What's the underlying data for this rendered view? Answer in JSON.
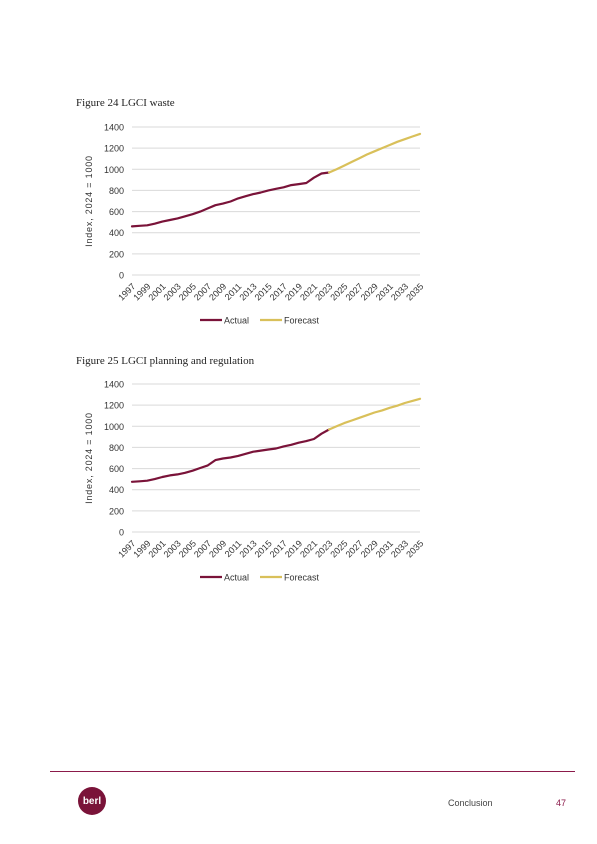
{
  "figures": [
    {
      "title": "Figure 24 LGCI waste"
    },
    {
      "title": "Figure 25 LGCI planning and regulation"
    }
  ],
  "chart_data": [
    {
      "type": "line",
      "ylabel": "Index, 2024 = 1000",
      "xlabel": "",
      "ylim": [
        0,
        1400
      ],
      "yticks": [
        0,
        200,
        400,
        600,
        800,
        1000,
        1200,
        1400
      ],
      "xticks": [
        "1997",
        "1999",
        "2001",
        "2003",
        "2005",
        "2007",
        "2009",
        "2011",
        "2013",
        "2015",
        "2017",
        "2019",
        "2021",
        "2023",
        "2025",
        "2027",
        "2029",
        "2031",
        "2033",
        "2035"
      ],
      "grid": true,
      "legend_position": "bottom",
      "series": [
        {
          "name": "Actual",
          "color": "#7a1339",
          "x": [
            1997,
            1998,
            1999,
            2000,
            2001,
            2002,
            2003,
            2004,
            2005,
            2006,
            2007,
            2008,
            2009,
            2010,
            2011,
            2012,
            2013,
            2014,
            2015,
            2016,
            2017,
            2018,
            2019,
            2020,
            2021,
            2022,
            2023
          ],
          "y": [
            460,
            465,
            470,
            485,
            505,
            520,
            535,
            555,
            575,
            600,
            630,
            660,
            675,
            695,
            725,
            745,
            765,
            780,
            800,
            815,
            830,
            850,
            860,
            870,
            920,
            960,
            970
          ]
        },
        {
          "name": "Forecast",
          "color": "#d9c05a",
          "x": [
            2023,
            2024,
            2025,
            2026,
            2027,
            2028,
            2029,
            2030,
            2031,
            2032,
            2033,
            2034,
            2035
          ],
          "y": [
            970,
            1000,
            1035,
            1070,
            1105,
            1140,
            1170,
            1200,
            1230,
            1260,
            1285,
            1310,
            1335
          ]
        }
      ]
    },
    {
      "type": "line",
      "ylabel": "Index, 2024 = 1000",
      "xlabel": "",
      "ylim": [
        0,
        1400
      ],
      "yticks": [
        0,
        200,
        400,
        600,
        800,
        1000,
        1200,
        1400
      ],
      "xticks": [
        "1997",
        "1999",
        "2001",
        "2003",
        "2005",
        "2007",
        "2009",
        "2011",
        "2013",
        "2015",
        "2017",
        "2019",
        "2021",
        "2023",
        "2025",
        "2027",
        "2029",
        "2031",
        "2033",
        "2035"
      ],
      "grid": true,
      "legend_position": "bottom",
      "series": [
        {
          "name": "Actual",
          "color": "#7a1339",
          "x": [
            1997,
            1998,
            1999,
            2000,
            2001,
            2002,
            2003,
            2004,
            2005,
            2006,
            2007,
            2008,
            2009,
            2010,
            2011,
            2012,
            2013,
            2014,
            2015,
            2016,
            2017,
            2018,
            2019,
            2020,
            2021,
            2022,
            2023
          ],
          "y": [
            475,
            480,
            485,
            500,
            520,
            535,
            545,
            560,
            580,
            605,
            630,
            680,
            695,
            705,
            720,
            740,
            760,
            770,
            780,
            790,
            810,
            825,
            845,
            860,
            880,
            930,
            970
          ]
        },
        {
          "name": "Forecast",
          "color": "#d9c05a",
          "x": [
            2023,
            2024,
            2025,
            2026,
            2027,
            2028,
            2029,
            2030,
            2031,
            2032,
            2033,
            2034,
            2035
          ],
          "y": [
            970,
            1000,
            1030,
            1055,
            1080,
            1105,
            1130,
            1150,
            1175,
            1195,
            1220,
            1240,
            1260
          ]
        }
      ]
    }
  ],
  "footer": {
    "logo_text": "berl",
    "section": "Conclusion",
    "page_number": "47"
  }
}
